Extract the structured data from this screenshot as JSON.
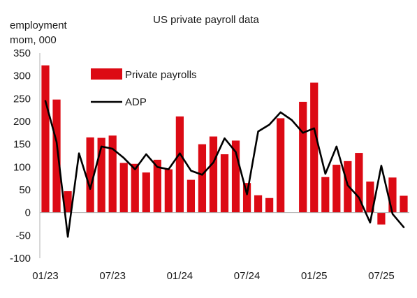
{
  "chart_data": {
    "type": "bar",
    "title": "US private payroll data",
    "ylabel_lines": [
      "employment",
      "mom, 000"
    ],
    "ylim": [
      -100,
      350
    ],
    "yticks": [
      350,
      300,
      250,
      200,
      150,
      100,
      50,
      0,
      -50,
      -100
    ],
    "x": [
      "2023-01",
      "2023-02",
      "2023-03",
      "2023-04",
      "2023-05",
      "2023-06",
      "2023-07",
      "2023-08",
      "2023-09",
      "2023-10",
      "2023-11",
      "2023-12",
      "2024-01",
      "2024-02",
      "2024-03",
      "2024-04",
      "2024-05",
      "2024-06",
      "2024-07",
      "2024-08",
      "2024-09",
      "2024-10",
      "2024-11",
      "2024-12",
      "2025-01",
      "2025-02",
      "2025-03",
      "2025-04",
      "2025-05",
      "2025-06",
      "2025-07",
      "2025-08",
      "2025-09"
    ],
    "xtick_labels": [
      {
        "index": 0,
        "label": "01/23"
      },
      {
        "index": 6,
        "label": "07/23"
      },
      {
        "index": 12,
        "label": "01/24"
      },
      {
        "index": 18,
        "label": "07/24"
      },
      {
        "index": 24,
        "label": "01/25"
      },
      {
        "index": 30,
        "label": "07/25"
      }
    ],
    "series": [
      {
        "name": "Private payrolls",
        "kind": "bar",
        "color": "#dc0a14",
        "values": [
          323,
          248,
          47,
          null,
          165,
          164,
          169,
          109,
          107,
          88,
          116,
          95,
          211,
          72,
          150,
          167,
          128,
          158,
          65,
          38,
          32,
          207,
          null,
          243,
          285,
          78,
          105,
          113,
          131,
          68,
          -26,
          77,
          37
        ]
      },
      {
        "name": "ADP",
        "kind": "line",
        "color": "#000000",
        "values": [
          245,
          155,
          -53,
          130,
          52,
          145,
          140,
          120,
          95,
          128,
          100,
          95,
          130,
          92,
          83,
          110,
          163,
          133,
          40,
          178,
          193,
          220,
          203,
          175,
          185,
          85,
          145,
          60,
          33,
          -22,
          103,
          -3,
          -32
        ]
      }
    ],
    "legend_position": "top-left",
    "grid": false
  }
}
